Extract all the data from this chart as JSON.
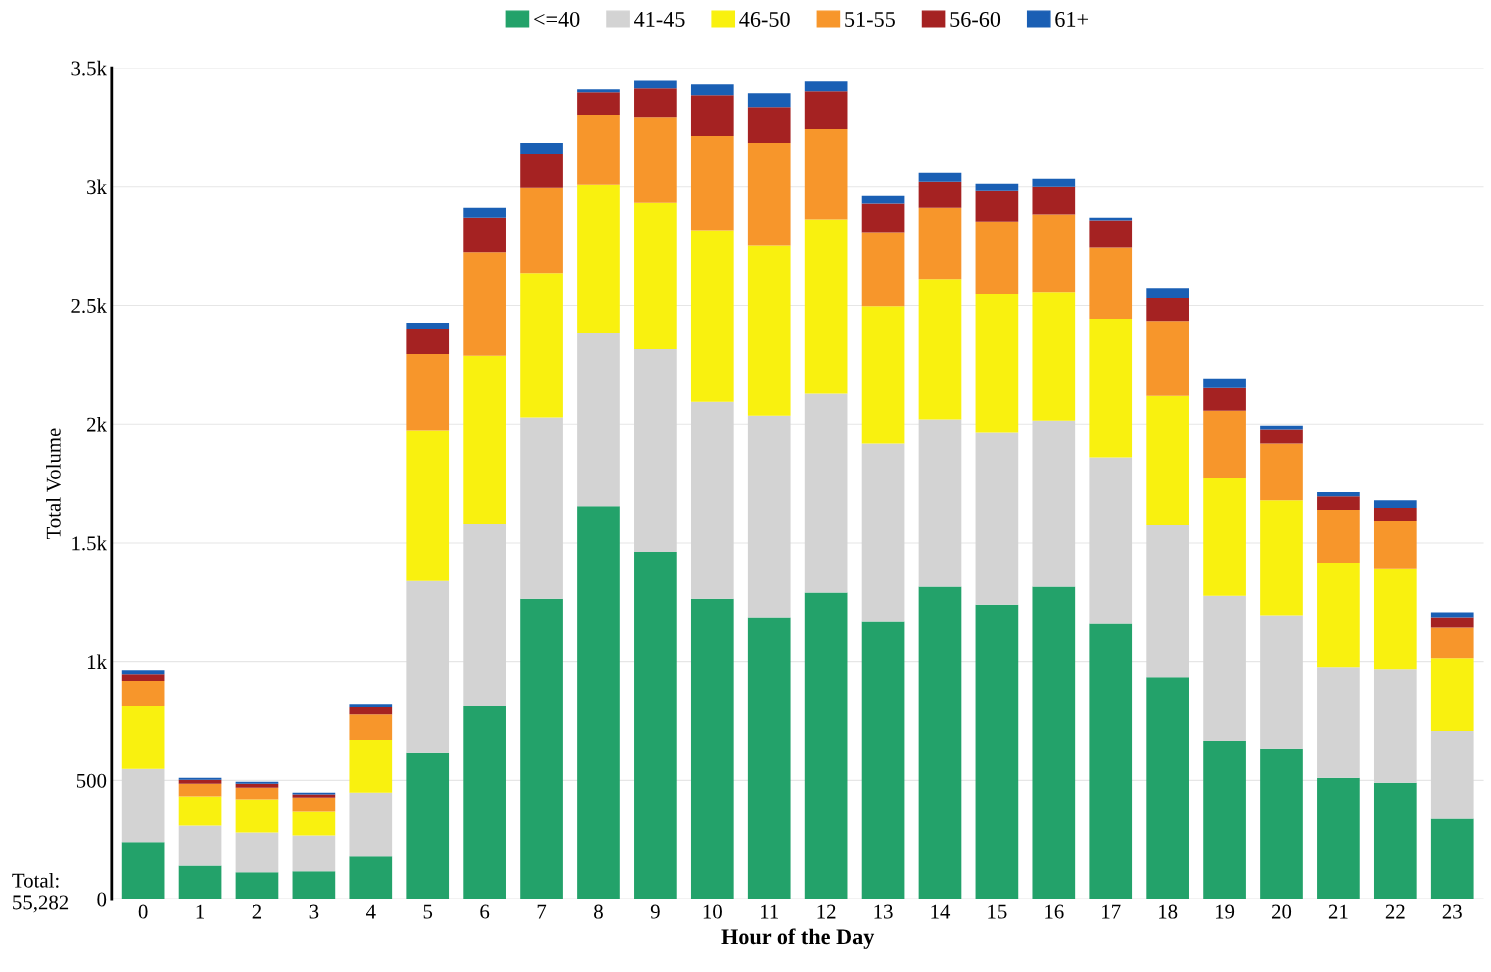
{
  "chart_data": {
    "type": "bar",
    "stacked": true,
    "xlabel": "Hour of the Day",
    "ylabel": "Total Volume",
    "categories": [
      "0",
      "1",
      "2",
      "3",
      "4",
      "5",
      "6",
      "7",
      "8",
      "9",
      "10",
      "11",
      "12",
      "13",
      "14",
      "15",
      "16",
      "17",
      "18",
      "19",
      "20",
      "21",
      "22",
      "23"
    ],
    "series": [
      {
        "name": "<=40",
        "color": "#23a26a",
        "values": [
          239,
          142,
          113,
          117,
          180,
          616,
          813,
          1265,
          1655,
          1462,
          1265,
          1186,
          1291,
          1169,
          1316,
          1240,
          1316,
          1161,
          934,
          666,
          633,
          511,
          490,
          339
        ]
      },
      {
        "name": "41-45",
        "color": "#d3d3d3",
        "values": [
          310,
          168,
          168,
          151,
          268,
          725,
          767,
          763,
          729,
          855,
          830,
          850,
          838,
          750,
          704,
          725,
          699,
          699,
          641,
          612,
          561,
          465,
          478,
          369
        ]
      },
      {
        "name": "46-50",
        "color": "#f9f10f",
        "values": [
          264,
          122,
          138,
          101,
          222,
          632,
          708,
          608,
          624,
          616,
          721,
          717,
          733,
          578,
          591,
          583,
          541,
          583,
          545,
          495,
          486,
          440,
          423,
          306
        ]
      },
      {
        "name": "51-55",
        "color": "#f7962b",
        "values": [
          105,
          54,
          50,
          58,
          109,
          323,
          436,
          360,
          294,
          360,
          398,
          431,
          381,
          310,
          301,
          305,
          327,
          301,
          314,
          284,
          239,
          223,
          201,
          130
        ]
      },
      {
        "name": "56-60",
        "color": "#a52222",
        "values": [
          29,
          17,
          17,
          13,
          30,
          105,
          146,
          142,
          96,
          122,
          171,
          151,
          159,
          122,
          109,
          130,
          117,
          114,
          97,
          97,
          59,
          58,
          55,
          42
        ]
      },
      {
        "name": "61+",
        "color": "#1a5fb4",
        "values": [
          17,
          8,
          8,
          8,
          12,
          25,
          42,
          46,
          13,
          33,
          47,
          59,
          42,
          33,
          38,
          30,
          34,
          12,
          42,
          37,
          16,
          17,
          33,
          21
        ]
      }
    ],
    "ylim": [
      0,
      3500
    ],
    "yticks": [
      0,
      500,
      {
        "value": 1000,
        "label": "1k"
      },
      {
        "value": 1500,
        "label": "1.5k"
      },
      {
        "value": 2000,
        "label": "2k"
      },
      {
        "value": 2500,
        "label": "2.5k"
      },
      {
        "value": 3000,
        "label": "3k"
      },
      {
        "value": 3500,
        "label": "3.5k"
      }
    ],
    "grid": "y",
    "legend": "top",
    "annotations": [
      "Total:\n55,282"
    ]
  }
}
